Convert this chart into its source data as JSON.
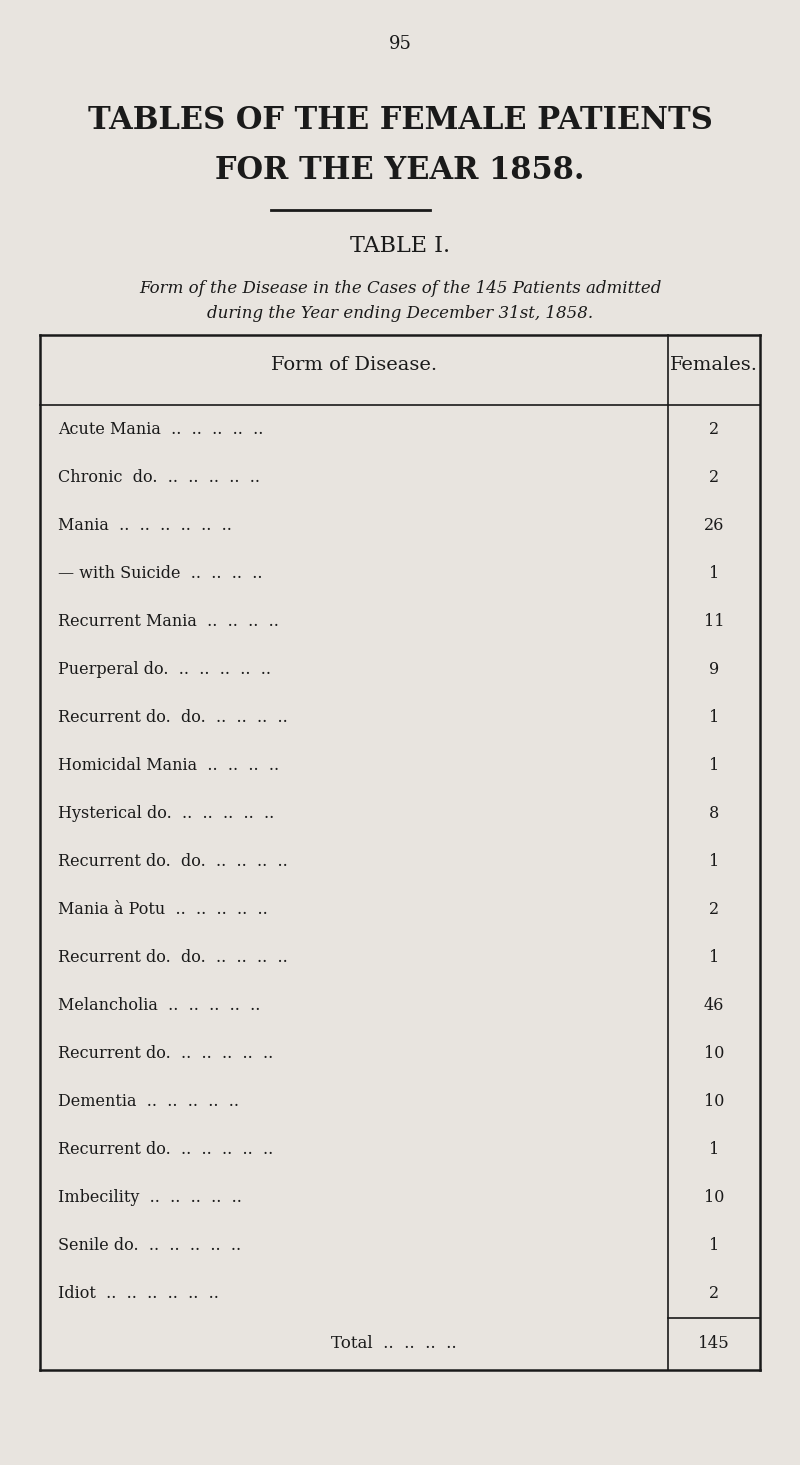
{
  "page_number": "95",
  "main_title_line1": "TABLES OF THE FEMALE PATIENTS",
  "main_title_line2": "FOR THE YEAR 1858.",
  "table_title": "TABLE I.",
  "subtitle_line1": "Form of the Disease in the Cases of the 145 Patients admitted",
  "subtitle_line2": "during the Year ending December 31st, 1858.",
  "col_header_left": "Form of Disease.",
  "col_header_right": "Females.",
  "rows": [
    {
      "label": "Acute Mania  ..  ..  ..  ..  ..",
      "value": "2"
    },
    {
      "label": "Chronic  do.  ..  ..  ..  ..  ..",
      "value": "2"
    },
    {
      "label": "Mania  ..  ..  ..  ..  ..  ..",
      "value": "26"
    },
    {
      "label": "— with Suicide  ..  ..  ..  ..",
      "value": "1"
    },
    {
      "label": "Recurrent Mania  ..  ..  ..  ..",
      "value": "11"
    },
    {
      "label": "Puerperal do.  ..  ..  ..  ..  ..",
      "value": "9"
    },
    {
      "label": "Recurrent do.  do.  ..  ..  ..  ..",
      "value": "1"
    },
    {
      "label": "Homicidal Mania  ..  ..  ..  ..",
      "value": "1"
    },
    {
      "label": "Hysterical do.  ..  ..  ..  ..  ..",
      "value": "8"
    },
    {
      "label": "Recurrent do.  do.  ..  ..  ..  ..",
      "value": "1"
    },
    {
      "label": "Mania à Potu  ..  ..  ..  ..  ..",
      "value": "2"
    },
    {
      "label": "Recurrent do.  do.  ..  ..  ..  ..",
      "value": "1"
    },
    {
      "label": "Melancholia  ..  ..  ..  ..  ..",
      "value": "46"
    },
    {
      "label": "Recurrent do.  ..  ..  ..  ..  ..",
      "value": "10"
    },
    {
      "label": "Dementia  ..  ..  ..  ..  ..",
      "value": "10"
    },
    {
      "label": "Recurrent do.  ..  ..  ..  ..  ..",
      "value": "1"
    },
    {
      "label": "Imbecility  ..  ..  ..  ..  ..",
      "value": "10"
    },
    {
      "label": "Senile do.  ..  ..  ..  ..  ..",
      "value": "1"
    },
    {
      "label": "Idiot  ..  ..  ..  ..  ..  ..",
      "value": "2"
    }
  ],
  "total_label": "Total  ..  ..  ..  ..",
  "total_value": "145",
  "bg_color": "#e8e4df",
  "text_color": "#1a1a1a",
  "table_bg": "#dedad5"
}
